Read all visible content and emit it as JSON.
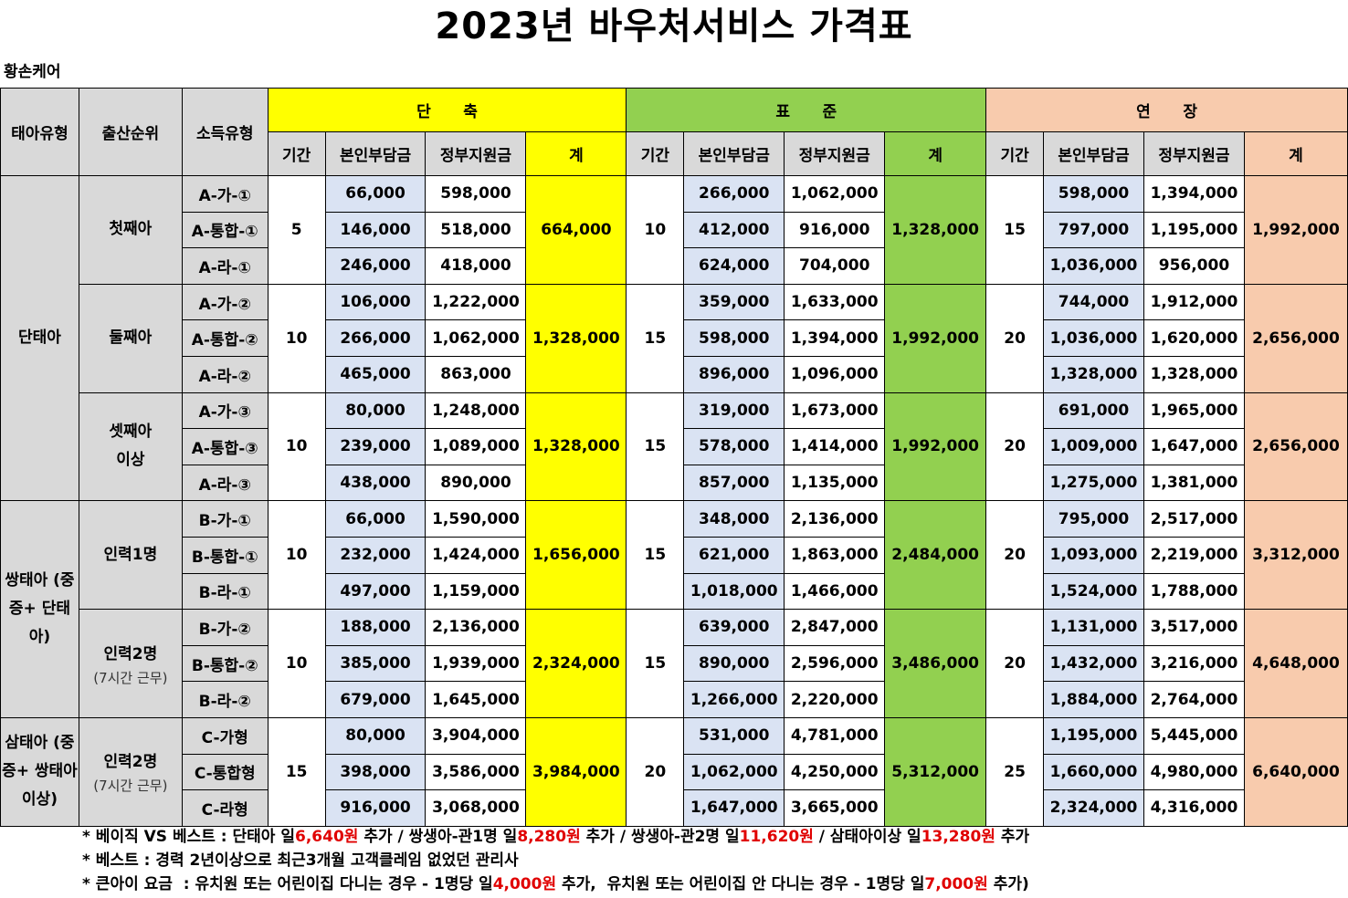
{
  "title": "2023년 바우처서비스 가격표",
  "company": "황손케어",
  "headers": {
    "baby_type": "태아유형",
    "birth_order": "출산순위",
    "income_type": "소득유형",
    "short": "단      축",
    "standard": "표      준",
    "extended": "연      장",
    "period": "기간",
    "self_pay": "본인부담금",
    "gov_support": "정부지원금",
    "total": "계"
  },
  "groups": [
    {
      "type": "단태아",
      "blocks": [
        {
          "order": "첫째아",
          "order_sub": "",
          "short_period": "5",
          "short_total": "664,000",
          "std_period": "10",
          "std_total": "1,328,000",
          "ext_period": "15",
          "ext_total": "1,992,000",
          "rows": [
            {
              "income": "A-가-①",
              "s_self": "66,000",
              "s_gov": "598,000",
              "t_self": "266,000",
              "t_gov": "1,062,000",
              "e_self": "598,000",
              "e_gov": "1,394,000"
            },
            {
              "income": "A-통합-①",
              "s_self": "146,000",
              "s_gov": "518,000",
              "t_self": "412,000",
              "t_gov": "916,000",
              "e_self": "797,000",
              "e_gov": "1,195,000"
            },
            {
              "income": "A-라-①",
              "s_self": "246,000",
              "s_gov": "418,000",
              "t_self": "624,000",
              "t_gov": "704,000",
              "e_self": "1,036,000",
              "e_gov": "956,000"
            }
          ]
        },
        {
          "order": "둘째아",
          "order_sub": "",
          "short_period": "10",
          "short_total": "1,328,000",
          "std_period": "15",
          "std_total": "1,992,000",
          "ext_period": "20",
          "ext_total": "2,656,000",
          "rows": [
            {
              "income": "A-가-②",
              "s_self": "106,000",
              "s_gov": "1,222,000",
              "t_self": "359,000",
              "t_gov": "1,633,000",
              "e_self": "744,000",
              "e_gov": "1,912,000"
            },
            {
              "income": "A-통합-②",
              "s_self": "266,000",
              "s_gov": "1,062,000",
              "t_self": "598,000",
              "t_gov": "1,394,000",
              "e_self": "1,036,000",
              "e_gov": "1,620,000"
            },
            {
              "income": "A-라-②",
              "s_self": "465,000",
              "s_gov": "863,000",
              "t_self": "896,000",
              "t_gov": "1,096,000",
              "e_self": "1,328,000",
              "e_gov": "1,328,000"
            }
          ]
        },
        {
          "order": "셋째아\n이상",
          "order_sub": "",
          "short_period": "10",
          "short_total": "1,328,000",
          "std_period": "15",
          "std_total": "1,992,000",
          "ext_period": "20",
          "ext_total": "2,656,000",
          "rows": [
            {
              "income": "A-가-③",
              "s_self": "80,000",
              "s_gov": "1,248,000",
              "t_self": "319,000",
              "t_gov": "1,673,000",
              "e_self": "691,000",
              "e_gov": "1,965,000"
            },
            {
              "income": "A-통합-③",
              "s_self": "239,000",
              "s_gov": "1,089,000",
              "t_self": "578,000",
              "t_gov": "1,414,000",
              "e_self": "1,009,000",
              "e_gov": "1,647,000"
            },
            {
              "income": "A-라-③",
              "s_self": "438,000",
              "s_gov": "890,000",
              "t_self": "857,000",
              "t_gov": "1,135,000",
              "e_self": "1,275,000",
              "e_gov": "1,381,000"
            }
          ]
        }
      ]
    },
    {
      "type": "쌍태아\n(중증+\n단태아)",
      "blocks": [
        {
          "order": "인력1명",
          "order_sub": "",
          "short_period": "10",
          "short_total": "1,656,000",
          "std_period": "15",
          "std_total": "2,484,000",
          "ext_period": "20",
          "ext_total": "3,312,000",
          "rows": [
            {
              "income": "B-가-①",
              "s_self": "66,000",
              "s_gov": "1,590,000",
              "t_self": "348,000",
              "t_gov": "2,136,000",
              "e_self": "795,000",
              "e_gov": "2,517,000"
            },
            {
              "income": "B-통합-①",
              "s_self": "232,000",
              "s_gov": "1,424,000",
              "t_self": "621,000",
              "t_gov": "1,863,000",
              "e_self": "1,093,000",
              "e_gov": "2,219,000"
            },
            {
              "income": "B-라-①",
              "s_self": "497,000",
              "s_gov": "1,159,000",
              "t_self": "1,018,000",
              "t_gov": "1,466,000",
              "e_self": "1,524,000",
              "e_gov": "1,788,000"
            }
          ]
        },
        {
          "order": "인력2명",
          "order_sub": "(7시간 근무)",
          "short_period": "10",
          "short_total": "2,324,000",
          "std_period": "15",
          "std_total": "3,486,000",
          "ext_period": "20",
          "ext_total": "4,648,000",
          "rows": [
            {
              "income": "B-가-②",
              "s_self": "188,000",
              "s_gov": "2,136,000",
              "t_self": "639,000",
              "t_gov": "2,847,000",
              "e_self": "1,131,000",
              "e_gov": "3,517,000"
            },
            {
              "income": "B-통합-②",
              "s_self": "385,000",
              "s_gov": "1,939,000",
              "t_self": "890,000",
              "t_gov": "2,596,000",
              "e_self": "1,432,000",
              "e_gov": "3,216,000"
            },
            {
              "income": "B-라-②",
              "s_self": "679,000",
              "s_gov": "1,645,000",
              "t_self": "1,266,000",
              "t_gov": "2,220,000",
              "e_self": "1,884,000",
              "e_gov": "2,764,000"
            }
          ]
        }
      ]
    },
    {
      "type": "삼태아\n(중증+\n쌍태아\n이상)",
      "blocks": [
        {
          "order": "인력2명",
          "order_sub": "(7시간 근무)",
          "short_period": "15",
          "short_total": "3,984,000",
          "std_period": "20",
          "std_total": "5,312,000",
          "ext_period": "25",
          "ext_total": "6,640,000",
          "rows": [
            {
              "income": "C-가형",
              "s_self": "80,000",
              "s_gov": "3,904,000",
              "t_self": "531,000",
              "t_gov": "4,781,000",
              "e_self": "1,195,000",
              "e_gov": "5,445,000"
            },
            {
              "income": "C-통합형",
              "s_self": "398,000",
              "s_gov": "3,586,000",
              "t_self": "1,062,000",
              "t_gov": "4,250,000",
              "e_self": "1,660,000",
              "e_gov": "4,980,000"
            },
            {
              "income": "C-라형",
              "s_self": "916,000",
              "s_gov": "3,068,000",
              "t_self": "1,647,000",
              "t_gov": "3,665,000",
              "e_self": "2,324,000",
              "e_gov": "4,316,000"
            }
          ]
        }
      ]
    }
  ],
  "notes": [
    [
      "* 베이직 VS 베스트 : 단태아 일",
      "6,640원",
      " 추가 / 쌍생아-관1명 일",
      "8,280원",
      " 추가 / 쌍생아-관2명 일",
      "11,620원",
      " / 삼태아이상 일",
      "13,280원",
      " 추가"
    ],
    [
      "* 베스트 : 경력 2년이상으로 최근3개월 고객클레임 없었던 관리사"
    ],
    [
      "* 큰아이 요금  : 유치원 또는 어린이집 다니는 경우 - 1명당 일",
      "4,000원",
      " 추가,  유치원 또는 어린이집 안 다니는 경우 - 1명당 일",
      "7,000원",
      " 추가)"
    ]
  ]
}
